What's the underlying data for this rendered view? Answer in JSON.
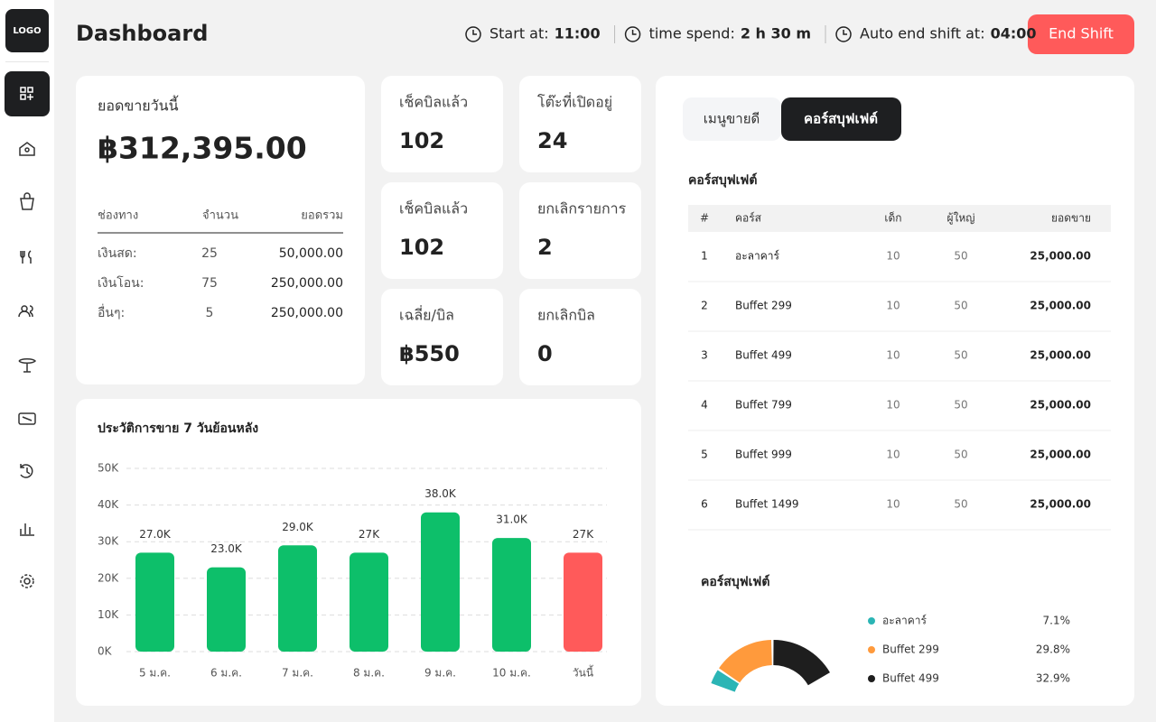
{
  "sidebar": {
    "logo": "LOGO"
  },
  "header": {
    "title": "Dashboard",
    "start_label": "Start at:",
    "start_value": "11:00",
    "spend_label": "time spend:",
    "spend_value": "2 h 30 m",
    "auto_end_label": "Auto end shift at:",
    "auto_end_value": "04:00",
    "end_button": "End Shift"
  },
  "sales": {
    "title": "ยอดขายวันนี้",
    "total": "฿312,395.00",
    "columns": [
      "ช่องทาง",
      "จำนวน",
      "ยอดรวม"
    ],
    "rows": [
      [
        "เงินสด:",
        "25",
        "50,000.00"
      ],
      [
        "เงินโอน:",
        "75",
        "250,000.00"
      ],
      [
        "อื่นๆ:",
        "5",
        "250,000.00"
      ]
    ]
  },
  "stats": [
    {
      "label": "เช็คบิลแล้ว",
      "value": "102"
    },
    {
      "label": "โต๊ะที่เปิดอยู่",
      "value": "24"
    },
    {
      "label": "เช็คบิลแล้ว",
      "value": "102"
    },
    {
      "label": "ยกเลิกรายการ",
      "value": "2"
    },
    {
      "label": "เฉลี่ย/บิล",
      "value": "฿550"
    },
    {
      "label": "ยกเลิกบิล",
      "value": "0"
    }
  ],
  "tabs": [
    "เมนูขายดี",
    "คอร์สบุฟเฟต์"
  ],
  "buffet_table": {
    "title": "คอร์สบุฟเฟต์",
    "columns": [
      "#",
      "คอร์ส",
      "เด็ก",
      "ผู้ใหญ่",
      "ยอดขาย"
    ],
    "rows": [
      [
        "1",
        "อะลาคาร์",
        "10",
        "50",
        "25,000.00"
      ],
      [
        "2",
        "Buffet 299",
        "10",
        "50",
        "25,000.00"
      ],
      [
        "3",
        "Buffet 499",
        "10",
        "50",
        "25,000.00"
      ],
      [
        "4",
        "Buffet 799",
        "10",
        "50",
        "25,000.00"
      ],
      [
        "5",
        "Buffet 999",
        "10",
        "50",
        "25,000.00"
      ],
      [
        "6",
        "Buffet 1499",
        "10",
        "50",
        "25,000.00"
      ]
    ]
  },
  "chart_data": [
    {
      "type": "bar",
      "title": "ประวัติการขาย 7 วันย้อนหลัง",
      "categories": [
        "5 ม.ค.",
        "6 ม.ค.",
        "7 ม.ค.",
        "8 ม.ค.",
        "9 ม.ค.",
        "10 ม.ค.",
        "วันนี้"
      ],
      "values": [
        27000,
        23000,
        29000,
        27000,
        38000,
        31000,
        27000
      ],
      "value_labels": [
        "27.0K",
        "23.0K",
        "29.0K",
        "27K",
        "38.0K",
        "31.0K",
        "27K"
      ],
      "colors": [
        "#0dbf6a",
        "#0dbf6a",
        "#0dbf6a",
        "#0dbf6a",
        "#0dbf6a",
        "#0dbf6a",
        "#ff5a5a"
      ],
      "ylim": [
        0,
        50000
      ],
      "yticks": [
        {
          "value": 0,
          "label": "0K"
        },
        {
          "value": 10000,
          "label": "10K"
        },
        {
          "value": 20000,
          "label": "20K"
        },
        {
          "value": 30000,
          "label": "30K"
        },
        {
          "value": 40000,
          "label": "40K"
        },
        {
          "value": 50000,
          "label": "50K"
        }
      ],
      "grid": true
    },
    {
      "type": "pie",
      "title": "คอร์สบุฟเฟต์",
      "categories": [
        "อะลาคาร์",
        "Buffet 299",
        "Buffet 499"
      ],
      "values": [
        7.1,
        29.8,
        32.9
      ],
      "value_labels": [
        "7.1%",
        "29.8%",
        "32.9%"
      ],
      "colors": [
        "#2bb5b5",
        "#ff9a3c",
        "#1e1e1e"
      ]
    }
  ]
}
